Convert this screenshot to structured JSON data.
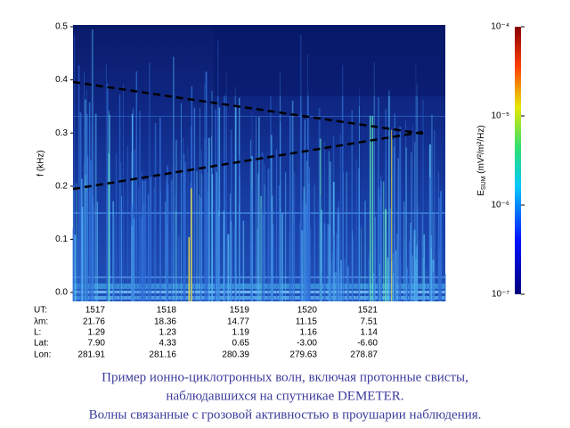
{
  "chart_data": {
    "type": "spectrogram",
    "y_label": "f (kHz)",
    "ylim": [
      0,
      0.5
    ],
    "yticks": [
      {
        "value": 0,
        "label": "0.0"
      },
      0.1,
      0.2,
      0.3,
      0.4,
      0.5
    ],
    "colorbar": {
      "label_main": "E",
      "label_sub": "SUM",
      "label_unit": " (mV²/m²/Hz)",
      "log_scale": true,
      "clim": [
        1e-07,
        0.0001
      ],
      "ticks": [
        {
          "value": 0.0001,
          "label": "10⁻⁴"
        },
        {
          "value": 1e-05,
          "label": "10⁻⁵"
        },
        {
          "value": 1e-06,
          "label": "10⁻⁶"
        },
        {
          "value": 1e-07,
          "label": "10⁻⁷"
        }
      ]
    },
    "x_table": {
      "row_labels": [
        "UT:",
        "λm:",
        "L:",
        "Lat:",
        "Lon:"
      ],
      "rows": [
        [
          "1517",
          "1518",
          "1519",
          "1520",
          "1521"
        ],
        [
          "21.76",
          "18.36",
          "14.77",
          "11.15",
          "7.51"
        ],
        [
          "1.29",
          "1.23",
          "1.19",
          "1.16",
          "1.14"
        ],
        [
          "7.90",
          "4.33",
          "0.65",
          "-3.00",
          "-6.60"
        ],
        [
          "281.91",
          "281.16",
          "280.39",
          "279.63",
          "278.87"
        ]
      ]
    }
  },
  "caption": [
    "Пример ионно-циклотронных волн, включая протонные свисты,",
    "наблюдавшихся на спутникае DEMETER.",
    "Волны связанные с грозовой активностью в проушарии наблюдения."
  ]
}
